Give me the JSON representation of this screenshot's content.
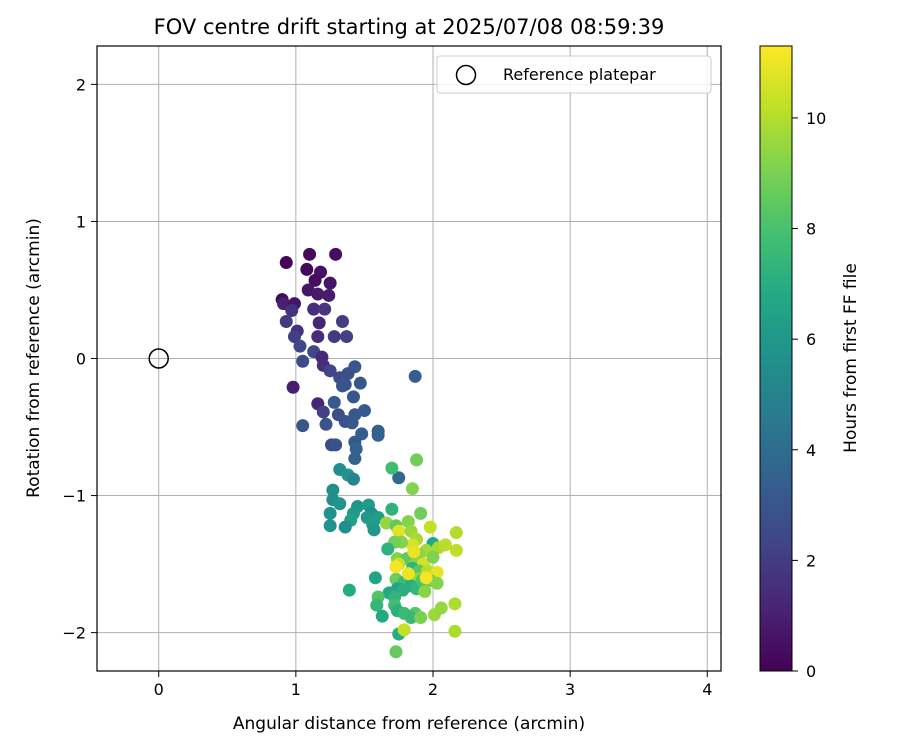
{
  "chart_data": {
    "type": "scatter",
    "title": "FOV centre drift starting at 2025/07/08 08:59:39",
    "xlabel": "Angular distance from reference (arcmin)",
    "ylabel": "Rotation from reference (arcmin)",
    "xlim": [
      -0.45,
      4.1
    ],
    "ylim": [
      -2.28,
      2.28
    ],
    "xticks": [
      0,
      1,
      2,
      3,
      4
    ],
    "xtick_labels": [
      "0",
      "1",
      "2",
      "3",
      "4"
    ],
    "yticks": [
      2,
      1,
      0,
      -1,
      -2
    ],
    "ytick_labels": [
      "2",
      "1",
      "0",
      "−1",
      "−2"
    ],
    "grid": true,
    "legend": {
      "position": "top-right",
      "entries": [
        {
          "label": "Reference platepar",
          "marker": "open-circle"
        }
      ]
    },
    "reference_point": {
      "x": 0,
      "y": 0
    },
    "colorbar": {
      "label": "Hours from first FF file",
      "range": [
        0,
        11.3
      ],
      "ticks": [
        0,
        2,
        4,
        6,
        8,
        10
      ],
      "tick_labels": [
        "0",
        "2",
        "4",
        "6",
        "8",
        "10"
      ],
      "colormap": "viridis"
    },
    "points": [
      {
        "x": 0.93,
        "y": 0.7,
        "c": 0.1
      },
      {
        "x": 1.1,
        "y": 0.76,
        "c": 0.3
      },
      {
        "x": 1.29,
        "y": 0.76,
        "c": 0.4
      },
      {
        "x": 1.08,
        "y": 0.65,
        "c": 0.2
      },
      {
        "x": 1.18,
        "y": 0.63,
        "c": 0.5
      },
      {
        "x": 1.25,
        "y": 0.55,
        "c": 0.6
      },
      {
        "x": 1.14,
        "y": 0.57,
        "c": 0.4
      },
      {
        "x": 1.09,
        "y": 0.5,
        "c": 0.7
      },
      {
        "x": 1.16,
        "y": 0.47,
        "c": 0.8
      },
      {
        "x": 1.24,
        "y": 0.46,
        "c": 0.9
      },
      {
        "x": 0.9,
        "y": 0.43,
        "c": 0.3
      },
      {
        "x": 0.91,
        "y": 0.4,
        "c": 1.0
      },
      {
        "x": 0.99,
        "y": 0.4,
        "c": 0.6
      },
      {
        "x": 0.97,
        "y": 0.35,
        "c": 1.7
      },
      {
        "x": 1.13,
        "y": 0.36,
        "c": 1.5
      },
      {
        "x": 1.21,
        "y": 0.36,
        "c": 1.8
      },
      {
        "x": 0.93,
        "y": 0.27,
        "c": 1.9
      },
      {
        "x": 1.17,
        "y": 0.26,
        "c": 1.2
      },
      {
        "x": 1.34,
        "y": 0.27,
        "c": 2.0
      },
      {
        "x": 1.01,
        "y": 0.2,
        "c": 1.6
      },
      {
        "x": 0.99,
        "y": 0.16,
        "c": 2.1
      },
      {
        "x": 1.16,
        "y": 0.16,
        "c": 1.4
      },
      {
        "x": 1.28,
        "y": 0.16,
        "c": 1.9
      },
      {
        "x": 1.37,
        "y": 0.16,
        "c": 2.2
      },
      {
        "x": 1.03,
        "y": 0.09,
        "c": 2.4
      },
      {
        "x": 1.13,
        "y": 0.05,
        "c": 2.5
      },
      {
        "x": 1.19,
        "y": 0.01,
        "c": 1.3
      },
      {
        "x": 1.05,
        "y": -0.02,
        "c": 2.6
      },
      {
        "x": 1.2,
        "y": -0.05,
        "c": 1.5
      },
      {
        "x": 1.25,
        "y": -0.09,
        "c": 2.3
      },
      {
        "x": 1.32,
        "y": -0.14,
        "c": 2.6
      },
      {
        "x": 1.43,
        "y": -0.06,
        "c": 3.0
      },
      {
        "x": 1.38,
        "y": -0.11,
        "c": 2.8
      },
      {
        "x": 1.34,
        "y": -0.2,
        "c": 2.9
      },
      {
        "x": 0.98,
        "y": -0.21,
        "c": 0.9
      },
      {
        "x": 1.47,
        "y": -0.18,
        "c": 3.1
      },
      {
        "x": 1.36,
        "y": -0.19,
        "c": 2.9
      },
      {
        "x": 1.42,
        "y": -0.28,
        "c": 3.0
      },
      {
        "x": 1.28,
        "y": -0.32,
        "c": 3.2
      },
      {
        "x": 1.16,
        "y": -0.33,
        "c": 1.2
      },
      {
        "x": 1.2,
        "y": -0.39,
        "c": 2.2
      },
      {
        "x": 1.31,
        "y": -0.41,
        "c": 2.7
      },
      {
        "x": 1.43,
        "y": -0.41,
        "c": 3.1
      },
      {
        "x": 1.5,
        "y": -0.38,
        "c": 3.2
      },
      {
        "x": 1.36,
        "y": -0.46,
        "c": 2.8
      },
      {
        "x": 1.41,
        "y": -0.47,
        "c": 3.1
      },
      {
        "x": 1.22,
        "y": -0.48,
        "c": 2.9
      },
      {
        "x": 1.05,
        "y": -0.49,
        "c": 3.0
      },
      {
        "x": 1.48,
        "y": -0.55,
        "c": 3.3
      },
      {
        "x": 1.6,
        "y": -0.53,
        "c": 3.4
      },
      {
        "x": 1.6,
        "y": -0.56,
        "c": 3.5
      },
      {
        "x": 1.43,
        "y": -0.61,
        "c": 3.2
      },
      {
        "x": 1.26,
        "y": -0.63,
        "c": 2.6
      },
      {
        "x": 1.29,
        "y": -0.63,
        "c": 2.8
      },
      {
        "x": 1.44,
        "y": -0.66,
        "c": 3.6
      },
      {
        "x": 1.43,
        "y": -0.73,
        "c": 3.5
      },
      {
        "x": 1.87,
        "y": -0.13,
        "c": 3.3
      },
      {
        "x": 1.75,
        "y": -0.87,
        "c": 3.8
      },
      {
        "x": 1.32,
        "y": -0.81,
        "c": 5.6
      },
      {
        "x": 1.38,
        "y": -0.85,
        "c": 5.8
      },
      {
        "x": 1.42,
        "y": -0.88,
        "c": 5.2
      },
      {
        "x": 1.7,
        "y": -0.8,
        "c": 7.8
      },
      {
        "x": 1.88,
        "y": -0.74,
        "c": 8.8
      },
      {
        "x": 1.85,
        "y": -0.95,
        "c": 9.2
      },
      {
        "x": 1.27,
        "y": -0.96,
        "c": 5.6
      },
      {
        "x": 1.27,
        "y": -1.03,
        "c": 5.5
      },
      {
        "x": 1.32,
        "y": -1.06,
        "c": 5.8
      },
      {
        "x": 1.45,
        "y": -1.08,
        "c": 5.9
      },
      {
        "x": 1.53,
        "y": -1.07,
        "c": 6.2
      },
      {
        "x": 1.42,
        "y": -1.13,
        "c": 6.1
      },
      {
        "x": 1.25,
        "y": -1.13,
        "c": 5.7
      },
      {
        "x": 1.55,
        "y": -1.13,
        "c": 5.4
      },
      {
        "x": 1.52,
        "y": -1.16,
        "c": 5.9
      },
      {
        "x": 1.6,
        "y": -1.16,
        "c": 6.3
      },
      {
        "x": 1.7,
        "y": -1.1,
        "c": 7.2
      },
      {
        "x": 1.4,
        "y": -1.18,
        "c": 6.4
      },
      {
        "x": 1.56,
        "y": -1.21,
        "c": 6.2
      },
      {
        "x": 1.25,
        "y": -1.22,
        "c": 5.7
      },
      {
        "x": 1.36,
        "y": -1.23,
        "c": 5.6
      },
      {
        "x": 1.57,
        "y": -1.25,
        "c": 6.0
      },
      {
        "x": 1.66,
        "y": -1.2,
        "c": 9.5
      },
      {
        "x": 1.73,
        "y": -1.22,
        "c": 8.6
      },
      {
        "x": 1.75,
        "y": -1.26,
        "c": 10.8
      },
      {
        "x": 1.82,
        "y": -1.19,
        "c": 9.2
      },
      {
        "x": 1.91,
        "y": -1.13,
        "c": 8.8
      },
      {
        "x": 1.84,
        "y": -1.26,
        "c": 9.6
      },
      {
        "x": 1.88,
        "y": -1.32,
        "c": 9.8
      },
      {
        "x": 1.98,
        "y": -1.23,
        "c": 10.3
      },
      {
        "x": 2.0,
        "y": -1.35,
        "c": 6.8
      },
      {
        "x": 1.95,
        "y": -1.4,
        "c": 9.8
      },
      {
        "x": 1.9,
        "y": -1.43,
        "c": 9.4
      },
      {
        "x": 1.85,
        "y": -1.36,
        "c": 10.6
      },
      {
        "x": 1.77,
        "y": -1.34,
        "c": 9.2
      },
      {
        "x": 1.72,
        "y": -1.34,
        "c": 8.9
      },
      {
        "x": 1.67,
        "y": -1.39,
        "c": 7.2
      },
      {
        "x": 1.74,
        "y": -1.46,
        "c": 9.2
      },
      {
        "x": 1.81,
        "y": -1.46,
        "c": 8.5
      },
      {
        "x": 1.75,
        "y": -1.5,
        "c": 10.4
      },
      {
        "x": 1.87,
        "y": -1.5,
        "c": 9.4
      },
      {
        "x": 1.93,
        "y": -1.5,
        "c": 10.6
      },
      {
        "x": 1.85,
        "y": -1.53,
        "c": 7.2
      },
      {
        "x": 1.9,
        "y": -1.55,
        "c": 8.4
      },
      {
        "x": 1.96,
        "y": -1.55,
        "c": 10.1
      },
      {
        "x": 2.03,
        "y": -1.56,
        "c": 10.9
      },
      {
        "x": 1.89,
        "y": -1.61,
        "c": 9.6
      },
      {
        "x": 1.96,
        "y": -1.61,
        "c": 9.1
      },
      {
        "x": 1.73,
        "y": -1.61,
        "c": 8.7
      },
      {
        "x": 1.79,
        "y": -1.63,
        "c": 7.6
      },
      {
        "x": 1.84,
        "y": -1.66,
        "c": 7.0
      },
      {
        "x": 1.74,
        "y": -1.68,
        "c": 6.5
      },
      {
        "x": 1.78,
        "y": -1.69,
        "c": 7.1
      },
      {
        "x": 1.88,
        "y": -1.68,
        "c": 7.4
      },
      {
        "x": 1.92,
        "y": -1.62,
        "c": 8.1
      },
      {
        "x": 1.98,
        "y": -1.62,
        "c": 8.8
      },
      {
        "x": 2.03,
        "y": -1.64,
        "c": 9.2
      },
      {
        "x": 1.94,
        "y": -1.7,
        "c": 9.3
      },
      {
        "x": 1.68,
        "y": -1.71,
        "c": 6.8
      },
      {
        "x": 1.72,
        "y": -1.74,
        "c": 7.3
      },
      {
        "x": 1.6,
        "y": -1.74,
        "c": 8.2
      },
      {
        "x": 1.58,
        "y": -1.6,
        "c": 6.6
      },
      {
        "x": 1.39,
        "y": -1.69,
        "c": 6.9
      },
      {
        "x": 1.59,
        "y": -1.8,
        "c": 7.4
      },
      {
        "x": 1.72,
        "y": -1.8,
        "c": 7.8
      },
      {
        "x": 1.74,
        "y": -1.84,
        "c": 7.1
      },
      {
        "x": 1.63,
        "y": -1.88,
        "c": 6.8
      },
      {
        "x": 1.79,
        "y": -1.86,
        "c": 7.6
      },
      {
        "x": 1.87,
        "y": -1.86,
        "c": 8.3
      },
      {
        "x": 1.84,
        "y": -1.89,
        "c": 7.5
      },
      {
        "x": 1.91,
        "y": -1.89,
        "c": 9.0
      },
      {
        "x": 2.01,
        "y": -1.87,
        "c": 9.6
      },
      {
        "x": 2.06,
        "y": -1.82,
        "c": 9.5
      },
      {
        "x": 2.16,
        "y": -1.79,
        "c": 9.9
      },
      {
        "x": 1.75,
        "y": -2.01,
        "c": 7.0
      },
      {
        "x": 1.79,
        "y": -1.98,
        "c": 10.3
      },
      {
        "x": 2.16,
        "y": -1.99,
        "c": 9.9
      },
      {
        "x": 1.73,
        "y": -2.14,
        "c": 8.6
      },
      {
        "x": 2.04,
        "y": -1.38,
        "c": 9.8
      },
      {
        "x": 2.09,
        "y": -1.36,
        "c": 10.1
      },
      {
        "x": 2.17,
        "y": -1.27,
        "c": 10.0
      },
      {
        "x": 2.17,
        "y": -1.4,
        "c": 10.2
      },
      {
        "x": 2.0,
        "y": -1.45,
        "c": 9.1
      },
      {
        "x": 1.82,
        "y": -1.57,
        "c": 11.0
      },
      {
        "x": 1.86,
        "y": -1.41,
        "c": 10.9
      },
      {
        "x": 1.73,
        "y": -1.52,
        "c": 11.2
      },
      {
        "x": 1.95,
        "y": -1.6,
        "c": 11.1
      }
    ]
  }
}
